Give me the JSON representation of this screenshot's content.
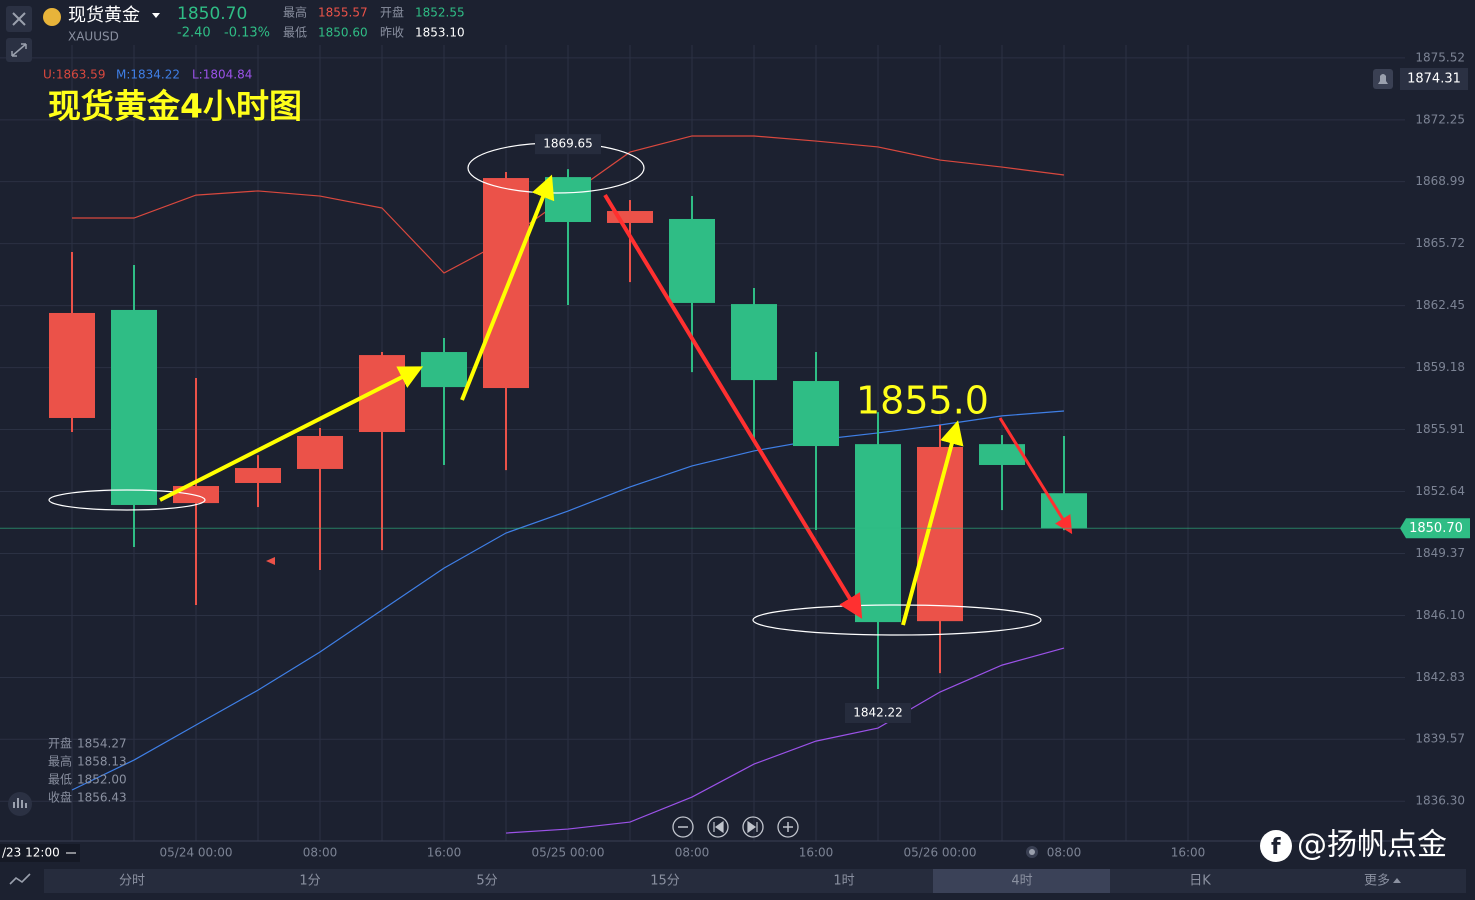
{
  "header": {
    "name": "现货黄金",
    "symbol": "XAUUSD",
    "price": "1850.70",
    "change": "-2.40",
    "change_pct": "-0.13%",
    "high_label": "最高",
    "high": "1855.57",
    "open_label": "开盘",
    "open": "1852.55",
    "low_label": "最低",
    "low": "1850.60",
    "prev_close_label": "昨收",
    "prev_close": "1853.10"
  },
  "indicator": {
    "upper": "U:1863.59",
    "middle": "M:1834.22",
    "lower": "L:1804.84"
  },
  "info": [
    [
      "开盘",
      "1854.27"
    ],
    [
      "最高",
      "1858.13"
    ],
    [
      "最低",
      "1852.00"
    ],
    [
      "收盘",
      "1856.43"
    ]
  ],
  "alert_price": "1874.31",
  "cursor_time": "/23 12:00",
  "timeframes": [
    "分时",
    "1分",
    "5分",
    "15分",
    "1时",
    "4时",
    "日K",
    "更多"
  ],
  "watermark": "@扬帆点金",
  "chart_data": {
    "type": "candlestick",
    "title": "现货黄金4小时图",
    "annotation": "1855.0",
    "categories": [
      null,
      null,
      "05/24 00:00",
      null,
      "08:00",
      null,
      "16:00",
      null,
      "05/25 00:00",
      null,
      "08:00",
      null,
      "16:00",
      null,
      "05/26 00:00",
      null,
      "08:00",
      null,
      "16:00"
    ],
    "open": [
      1856.52,
      1862.22,
      1852.03,
      1853.09,
      1853.83,
      1855.78,
      1860,
      1858.1,
      1869.23,
      1866.81,
      1867.02,
      1862.53,
      1858.47,
      1855.14,
      1845.8,
      1855.14,
      1852.55,
      null,
      null
    ],
    "high": [
      1865.28,
      1864.59,
      1858.63,
      1854.56,
      1855.99,
      1860,
      1860.74,
      1869.5,
      1869.65,
      1868.02,
      1868.23,
      1863.38,
      1860,
      1856.83,
      1856.15,
      1855.62,
      1855.57,
      null,
      null
    ],
    "low": [
      1855.78,
      1849.71,
      1846.65,
      1851.82,
      1848.5,
      1849.55,
      1854.04,
      1853.77,
      1862.48,
      1863.69,
      1858.94,
      1855.36,
      1850.61,
      1842.22,
      1843.06,
      1851.66,
      1850.6,
      null,
      null
    ],
    "close": [
      1862.06,
      1851.93,
      1852.93,
      1853.88,
      1855.57,
      1859.84,
      1858.15,
      1869.18,
      1866.86,
      1867.44,
      1862.59,
      1858.52,
      1855.04,
      1845.75,
      1854.99,
      1854.04,
      1850.7,
      null,
      null
    ],
    "up_color": "#eb5249",
    "down_color": "#2fbd85",
    "series": [
      {
        "color": "#d9483e",
        "values": [
          1867.07,
          1867.07,
          1868.28,
          1868.5,
          1868.23,
          1867.6,
          1864.17,
          1865.91,
          1868.23,
          1870.55,
          1871.4,
          1871.4,
          1871.13,
          1870.82,
          1870.13,
          1869.76,
          1869.34,
          null,
          null
        ]
      },
      {
        "color": "#3f7fe6",
        "values": [
          1836.89,
          1838.47,
          1840.32,
          1842.16,
          1844.17,
          1846.39,
          1848.6,
          1850.45,
          1851.61,
          1852.88,
          1853.99,
          1854.78,
          1855.36,
          1855.73,
          1856.15,
          1856.63,
          1856.89,
          null,
          null
        ]
      },
      {
        "color": "#9b52e8",
        "values": [
          null,
          null,
          null,
          null,
          null,
          null,
          null,
          1834.62,
          1834.83,
          1835.2,
          1836.52,
          1838.26,
          1839.47,
          1840.16,
          1842.06,
          1843.48,
          1844.38,
          null,
          null
        ]
      }
    ],
    "ylim": [
      1834.2,
      1876.2
    ],
    "yticks": [
      1875.52,
      1872.25,
      1868.99,
      1865.72,
      1862.45,
      1859.18,
      1855.91,
      1852.64,
      1849.37,
      {
        "value": 1846.1,
        "label": "1846.10"
      },
      1842.83,
      1839.57,
      {
        "value": 1836.3,
        "label": "1836.30"
      }
    ],
    "grid": true
  }
}
